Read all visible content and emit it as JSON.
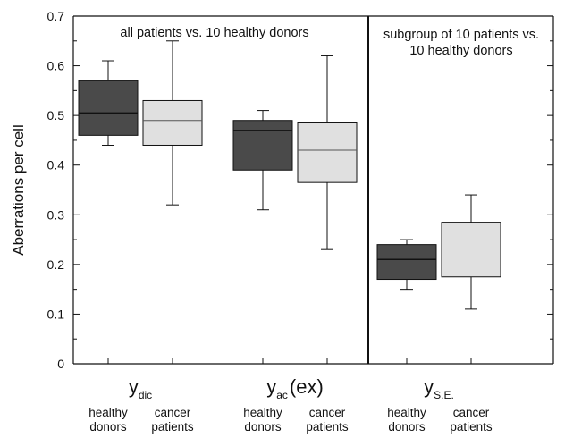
{
  "chart_data": {
    "type": "box",
    "ylabel": "Aberrations per cell",
    "ylim": [
      0,
      0.7
    ],
    "yticks": [
      "0",
      "0.1",
      "0.2",
      "0.3",
      "0.4",
      "0.5",
      "0.6",
      "0.7"
    ],
    "panels": [
      {
        "text": "all patients vs. 10 healthy donors"
      },
      {
        "line1": "subgroup of 10 patients vs.",
        "line2": "10 healthy donors"
      }
    ],
    "groups": [
      {
        "base": "y",
        "sub": "dic",
        "suffix": ""
      },
      {
        "base": "y",
        "sub": "ac",
        "suffix": "(ex)"
      },
      {
        "base": "y",
        "sub": "S.E.",
        "suffix": ""
      }
    ],
    "box_labels": [
      {
        "line1": "healthy",
        "line2": "donors"
      },
      {
        "line1": "cancer",
        "line2": "patients"
      }
    ],
    "colors": {
      "healthy_donors": "#4a4a4a",
      "cancer_patients": "#e0e0e0"
    },
    "boxes": [
      {
        "group": 0,
        "series": "healthy donors",
        "min": 0.44,
        "q1": 0.46,
        "median": 0.505,
        "q3": 0.57,
        "max": 0.61
      },
      {
        "group": 0,
        "series": "cancer patients",
        "min": 0.32,
        "q1": 0.44,
        "median": 0.49,
        "q3": 0.53,
        "max": 0.65
      },
      {
        "group": 1,
        "series": "healthy donors",
        "min": 0.31,
        "q1": 0.39,
        "median": 0.47,
        "q3": 0.49,
        "max": 0.51
      },
      {
        "group": 1,
        "series": "cancer patients",
        "min": 0.23,
        "q1": 0.365,
        "median": 0.43,
        "q3": 0.485,
        "max": 0.62
      },
      {
        "group": 2,
        "series": "healthy donors",
        "min": 0.15,
        "q1": 0.17,
        "median": 0.21,
        "q3": 0.24,
        "max": 0.25
      },
      {
        "group": 2,
        "series": "cancer patients",
        "min": 0.11,
        "q1": 0.175,
        "median": 0.215,
        "q3": 0.285,
        "max": 0.34
      }
    ]
  }
}
